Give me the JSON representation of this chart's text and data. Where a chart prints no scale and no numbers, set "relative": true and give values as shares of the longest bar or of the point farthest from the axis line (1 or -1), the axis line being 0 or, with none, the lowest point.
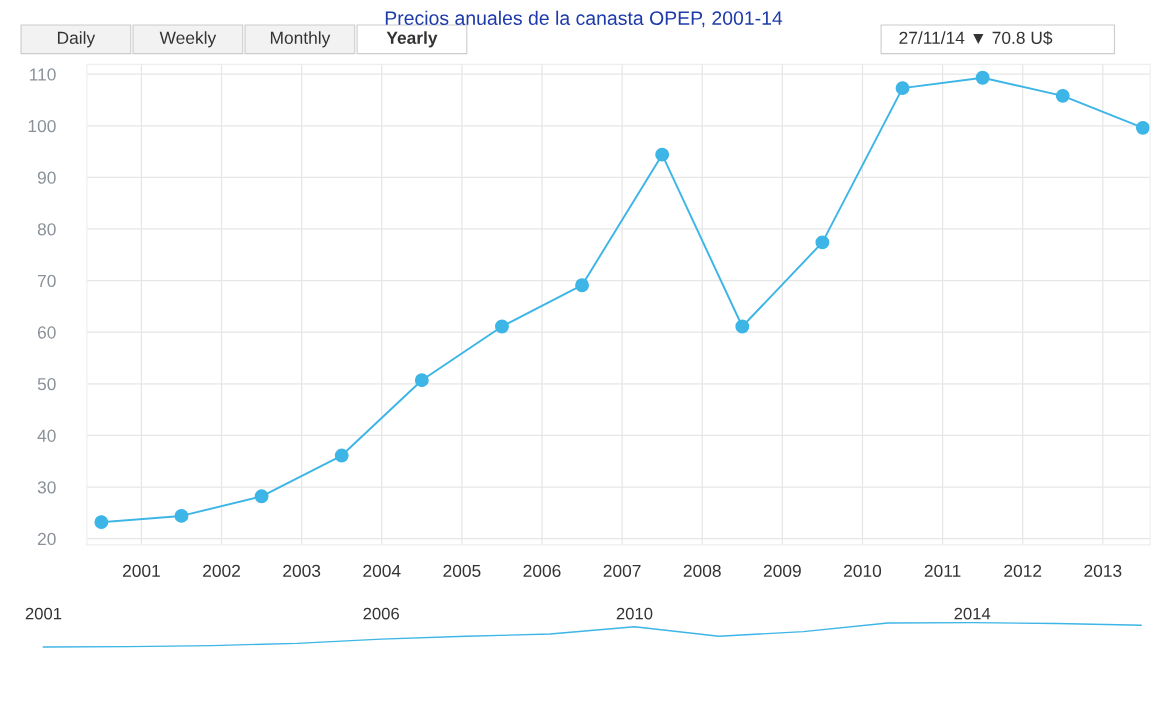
{
  "chart_data": [
    {
      "type": "line",
      "title": "Precios anuales de la canasta OPEP, 2001-14",
      "annotations": [
        "Daily",
        "Weekly",
        "Monthly",
        "Yearly",
        "27/11/14 ▼ 70.8 U$"
      ],
      "x": [
        2000.5,
        2001.5,
        2002.5,
        2003.5,
        2004.5,
        2005.5,
        2006.5,
        2007.5,
        2008.5,
        2009.5,
        2010.5,
        2011.5,
        2012.5,
        2013.5
      ],
      "series": [
        {
          "color": "#3db5e6",
          "values": [
            23.2,
            24.4,
            28.2,
            36.1,
            50.7,
            61.1,
            69.1,
            94.4,
            61.1,
            77.4,
            107.3,
            109.3,
            105.8,
            99.6
          ]
        }
      ],
      "xlim": [
        2000.32,
        2013.59
      ],
      "xticks": [
        2001,
        2002,
        2003,
        2004,
        2005,
        2006,
        2007,
        2008,
        2009,
        2010,
        2011,
        2012,
        2013
      ],
      "ylim": [
        18.8,
        111.9
      ],
      "yticks": [
        20,
        30,
        40,
        50,
        60,
        70,
        80,
        90,
        100,
        110
      ],
      "grid": true,
      "marker": "circle",
      "line_style": "solid"
    },
    {
      "type": "line",
      "relative": true,
      "categories": [
        "2001",
        null,
        null,
        null,
        "2006",
        null,
        null,
        "2010",
        null,
        null,
        null,
        "2014",
        null,
        null
      ],
      "series": [
        {
          "color": "#3db5e6",
          "values": [
            0,
            0.014,
            0.058,
            0.15,
            0.32,
            0.44,
            0.53,
            0.83,
            0.44,
            0.63,
            0.98,
            1,
            0.96,
            0.89
          ]
        }
      ],
      "tick_labels": "x",
      "grid": false,
      "marker": "none",
      "line_style": "solid"
    }
  ]
}
